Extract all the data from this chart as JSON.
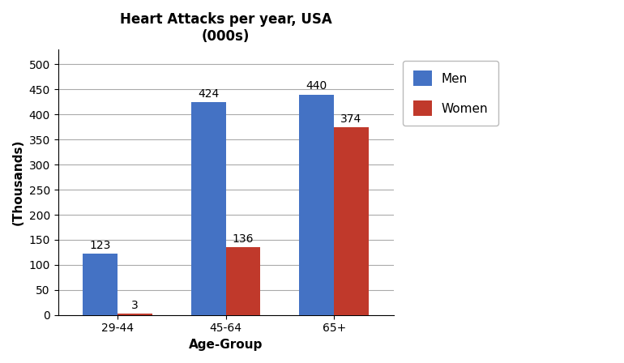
{
  "title_line1": "Heart Attacks per year, USA",
  "title_line2": "(000s)",
  "xlabel": "Age-Group",
  "ylabel": "(Thousands)",
  "categories": [
    "29-44",
    "45-64",
    "65+"
  ],
  "men_values": [
    123,
    424,
    440
  ],
  "women_values": [
    3,
    136,
    374
  ],
  "men_color": "#4472C4",
  "women_color": "#C0392B",
  "legend_men": "Men",
  "legend_women": "Women",
  "ylim": [
    0,
    530
  ],
  "yticks": [
    0,
    50,
    100,
    150,
    200,
    250,
    300,
    350,
    400,
    450,
    500
  ],
  "bar_width": 0.32,
  "grid_color": "#AAAAAA",
  "background_color": "#FFFFFF",
  "title_fontsize": 12,
  "label_fontsize": 11,
  "tick_fontsize": 10,
  "annotation_fontsize": 10
}
